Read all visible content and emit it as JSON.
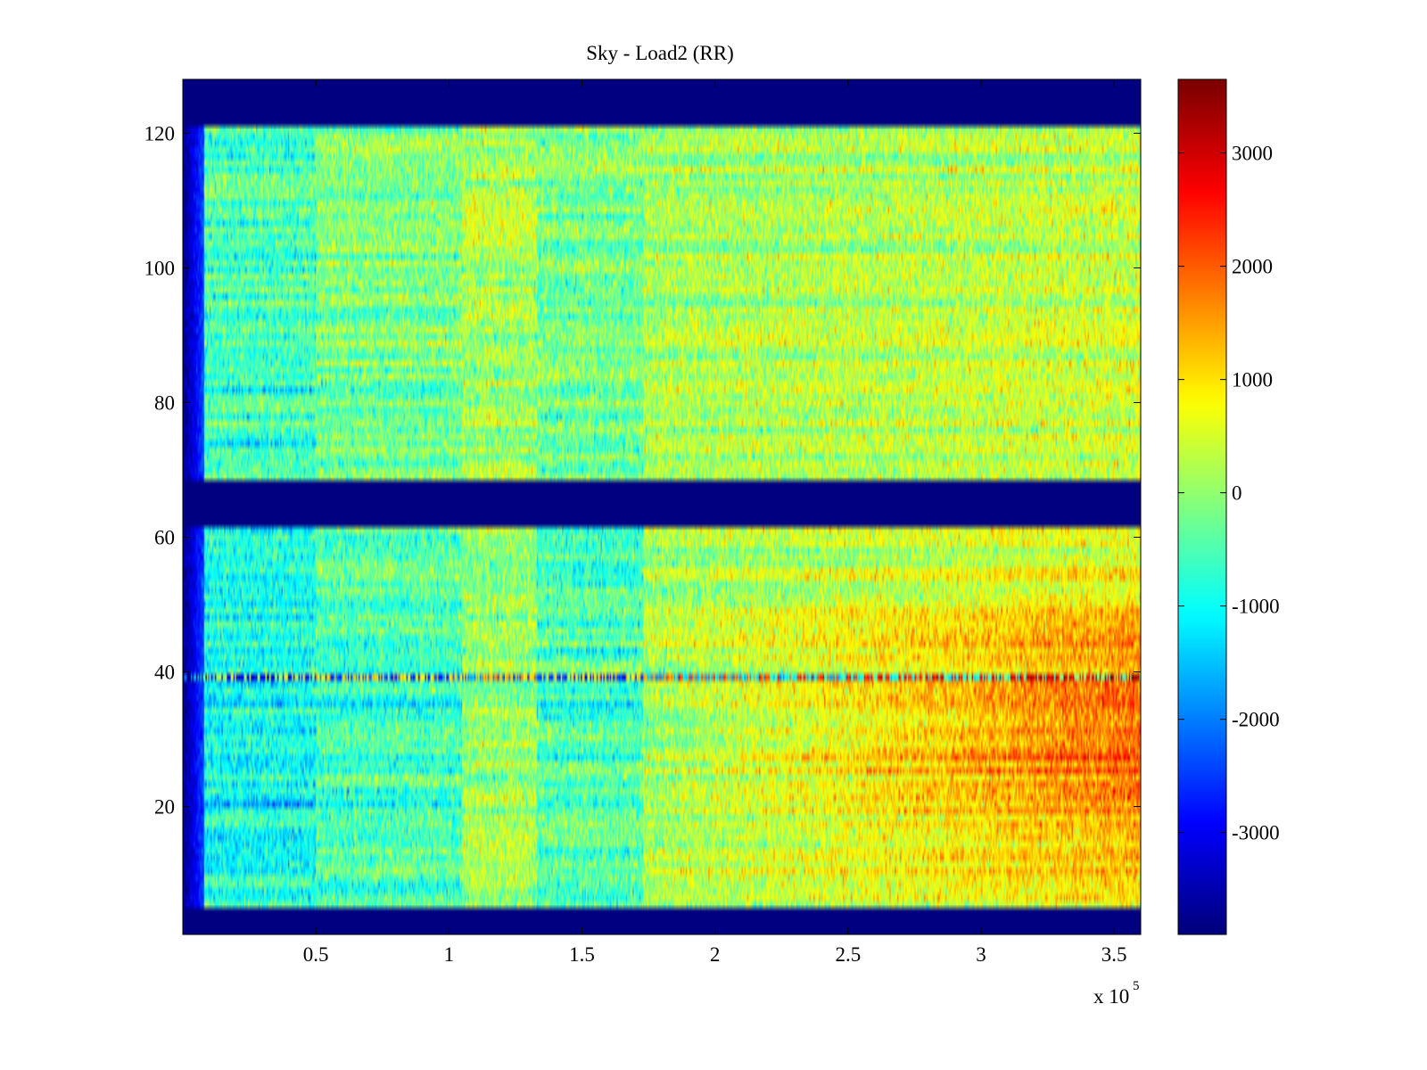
{
  "chart_data": {
    "type": "heatmap",
    "title": "Sky - Load2 (RR)",
    "xlabel": "",
    "ylabel": "",
    "x_axis": {
      "range": [
        0,
        360000
      ],
      "ticks": [
        50000,
        100000,
        150000,
        200000,
        250000,
        300000,
        350000
      ],
      "tick_labels": [
        "0.5",
        "1",
        "1.5",
        "2",
        "2.5",
        "3",
        "3.5"
      ],
      "multiplier_text": "x 10",
      "multiplier_exponent": "5"
    },
    "y_axis": {
      "range": [
        1,
        128
      ],
      "ticks": [
        20,
        40,
        60,
        80,
        100,
        120
      ],
      "tick_labels": [
        "20",
        "40",
        "60",
        "80",
        "100",
        "120"
      ]
    },
    "colorbar": {
      "range": [
        -3900,
        3650
      ],
      "colormap": "jet",
      "ticks": [
        -3000,
        -2000,
        -1000,
        0,
        1000,
        2000,
        3000
      ],
      "tick_labels": [
        "-3000",
        "-2000",
        "-1000",
        "0",
        "1000",
        "2000",
        "3000"
      ]
    },
    "rows_per_channel": 1,
    "empty_channel_bands": [
      [
        1,
        4
      ],
      [
        62,
        68
      ],
      [
        122,
        128
      ]
    ],
    "column_segment_boundaries": [
      0,
      50000,
      105000,
      133000,
      173000,
      360000
    ],
    "segment_offsets_lower_half": [
      -900,
      -500,
      50,
      -450,
      100
    ],
    "segment_offsets_upper_half": [
      -550,
      -150,
      150,
      -200,
      100
    ],
    "x_trend_gain_lower": 1700,
    "x_trend_gain_upper": 300,
    "notable_features": [
      {
        "channel": 39,
        "description": "narrow horizontal line of alternating orange/blue values"
      },
      {
        "channel": 35,
        "description": "strong dark-blue stripe in early segments, red late"
      },
      {
        "channel": 8,
        "description": "peak red values near x = 3.3e5"
      }
    ],
    "colors": {
      "background": "#ffffff",
      "axes_frame": "#000000",
      "empty_band": "#00008f"
    }
  }
}
